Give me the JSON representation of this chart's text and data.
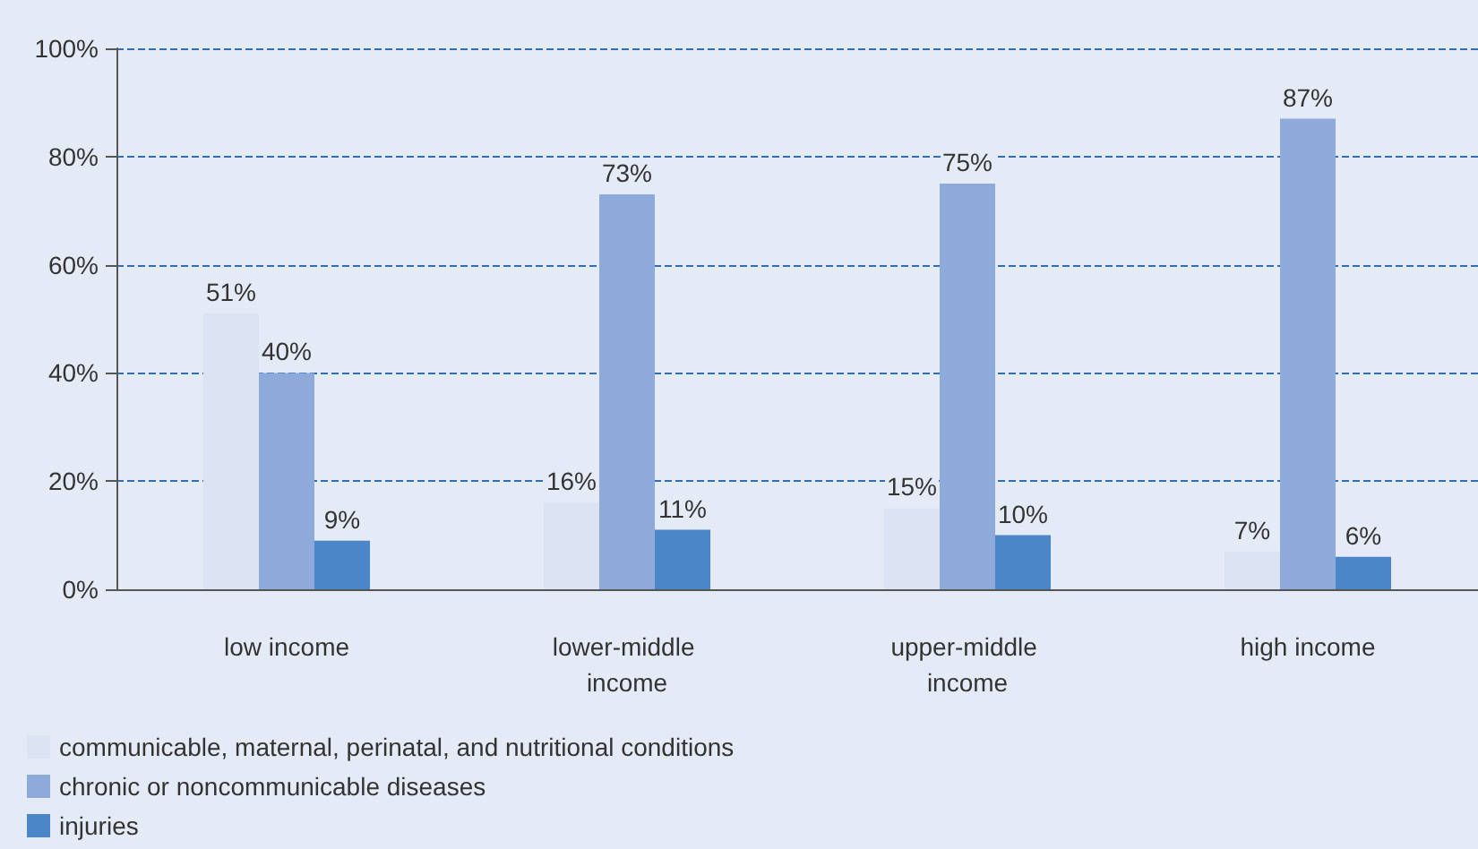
{
  "chart_data": {
    "type": "bar",
    "categories": [
      "low income",
      "lower-middle income",
      "upper-middle income",
      "high income"
    ],
    "series": [
      {
        "name": "communicable, maternal, perinatal, and nutritional conditions",
        "color": "#dce3f3",
        "values": [
          51,
          16,
          15,
          7
        ],
        "value_labels": [
          "51%",
          "16%",
          "15%",
          "7%"
        ]
      },
      {
        "name": "chronic or noncommunicable diseases",
        "color": "#8eaadb",
        "values": [
          40,
          73,
          75,
          87
        ],
        "value_labels": [
          "40%",
          "73%",
          "75%",
          "87%"
        ]
      },
      {
        "name": "injuries",
        "color": "#4a86c8",
        "values": [
          9,
          11,
          10,
          6
        ],
        "value_labels": [
          "9%",
          "11%",
          "10%",
          "6%"
        ]
      }
    ],
    "ylim": [
      0,
      100
    ],
    "yticks": [
      {
        "value": 0,
        "label": "0%"
      },
      {
        "value": 20,
        "label": "20%"
      },
      {
        "value": 40,
        "label": "40%"
      },
      {
        "value": 60,
        "label": "60%"
      },
      {
        "value": 80,
        "label": "80%"
      },
      {
        "value": 100,
        "label": "100%"
      }
    ],
    "grid": "y",
    "legend": "bottom left"
  }
}
